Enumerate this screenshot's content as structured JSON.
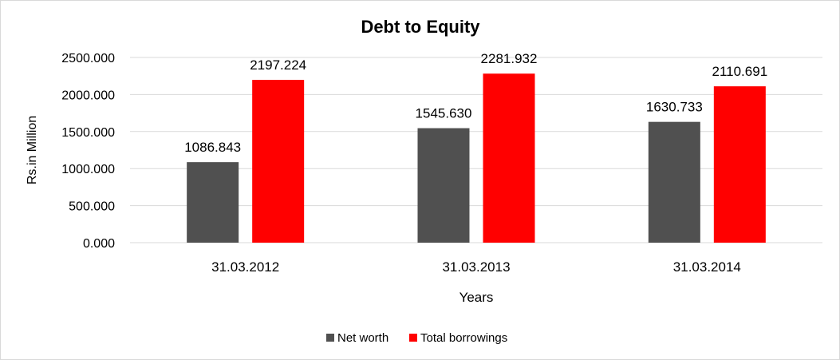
{
  "chart_data": {
    "type": "bar",
    "title": "Debt to Equity",
    "xlabel": "Years",
    "ylabel": "Rs.in Million",
    "categories": [
      "31.03.2012",
      "31.03.2013",
      "31.03.2014"
    ],
    "series": [
      {
        "name": "Net worth",
        "color": "#505050",
        "values": [
          1086.843,
          1545.63,
          1630.733
        ]
      },
      {
        "name": "Total borrowings",
        "color": "#ff0000",
        "values": [
          2197.224,
          2281.932,
          2110.691
        ]
      }
    ],
    "data_labels": [
      [
        "1086.843",
        "1545.630",
        "1630.733"
      ],
      [
        "2197.224",
        "2281.932",
        "2110.691"
      ]
    ],
    "ylim": [
      0,
      2500
    ],
    "yticks": [
      0,
      500,
      1000,
      1500,
      2000,
      2500
    ],
    "ytick_labels": [
      "0.000",
      "500.000",
      "1000.000",
      "1500.000",
      "2000.000",
      "2500.000"
    ],
    "grid": true,
    "legend_position": "bottom",
    "title_color": "#ff0000",
    "grid_color": "#d9d9d9"
  }
}
